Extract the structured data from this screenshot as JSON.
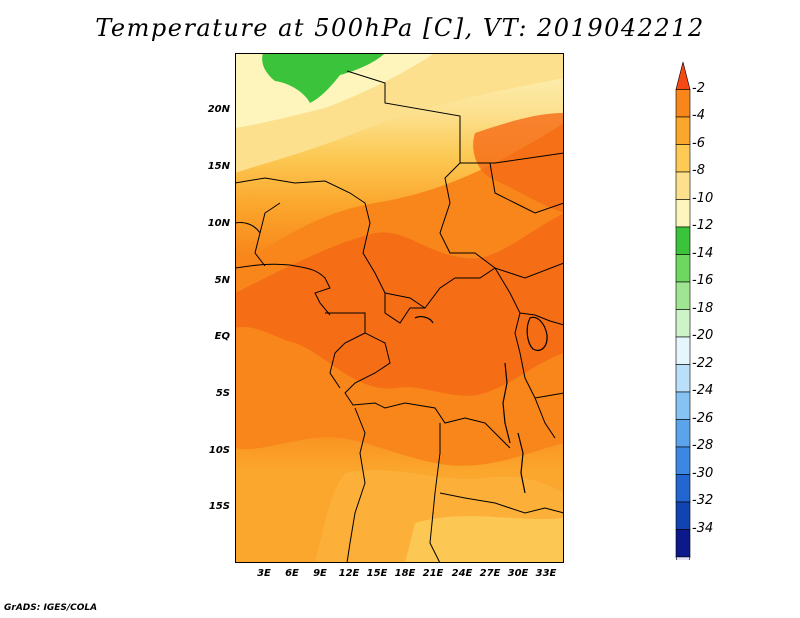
{
  "title": "Temperature at 500hPa [C], VT: 2019042212",
  "credit": "GrADS: IGES/COLA",
  "lat_ticks": [
    "20N",
    "15N",
    "10N",
    "5N",
    "EQ",
    "5S",
    "10S",
    "15S"
  ],
  "lon_ticks": [
    "3E",
    "6E",
    "9E",
    "12E",
    "15E",
    "18E",
    "21E",
    "24E",
    "27E",
    "30E",
    "33E"
  ],
  "colorbar": {
    "labels": [
      "-2",
      "-4",
      "-6",
      "-8",
      "-10",
      "-12",
      "-14",
      "-16",
      "-18",
      "-20",
      "-22",
      "-24",
      "-26",
      "-28",
      "-30",
      "-32",
      "-34"
    ],
    "colors": [
      "#f54a13",
      "#f8861a",
      "#fba62c",
      "#fcca55",
      "#fce08e",
      "#fdf5bc",
      "#3bc33c",
      "#6ed75f",
      "#a0e692",
      "#cdf4c8",
      "#e6f6fd",
      "#b9e0f8",
      "#87c3f2",
      "#5ba3ea",
      "#3c87e3",
      "#2365d1",
      "#1244b1",
      "#0b198a",
      "#e4e4f8"
    ]
  }
}
